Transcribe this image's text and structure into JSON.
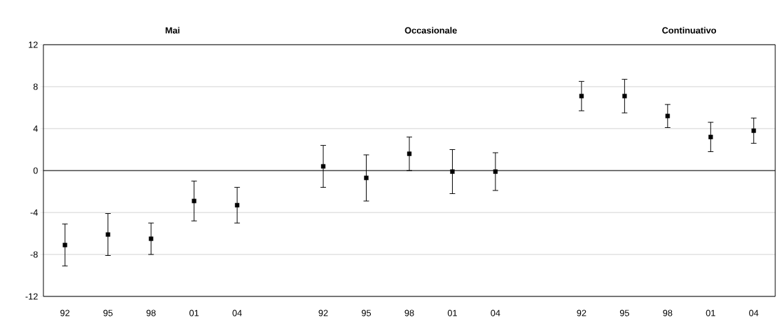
{
  "chart_data": {
    "type": "scatter",
    "categories": [
      "92",
      "95",
      "98",
      "01",
      "04",
      null,
      "92",
      "95",
      "98",
      "01",
      "04",
      null,
      "92",
      "95",
      "98",
      "01",
      "04"
    ],
    "values": [
      -7.1,
      -6.1,
      -6.5,
      -2.9,
      -3.3,
      null,
      0.4,
      -0.7,
      1.6,
      -0.1,
      -0.1,
      null,
      7.1,
      7.1,
      5.2,
      3.2,
      3.8
    ],
    "errors": [
      2.0,
      2.0,
      1.5,
      1.9,
      1.7,
      null,
      2.0,
      2.2,
      1.6,
      2.1,
      1.8,
      null,
      1.4,
      1.6,
      1.1,
      1.4,
      1.2
    ],
    "color": "#000000",
    "marker": "square",
    "ylim": [
      -12,
      12
    ],
    "yticks": [
      -12,
      -8,
      -4,
      0,
      4,
      8,
      12
    ],
    "grid": "y",
    "ref_lines": [
      {
        "axis": "y",
        "value": 0,
        "color": "#000000"
      }
    ],
    "annotations": [
      "Mai",
      "Occasionale",
      "Continuativo"
    ]
  }
}
